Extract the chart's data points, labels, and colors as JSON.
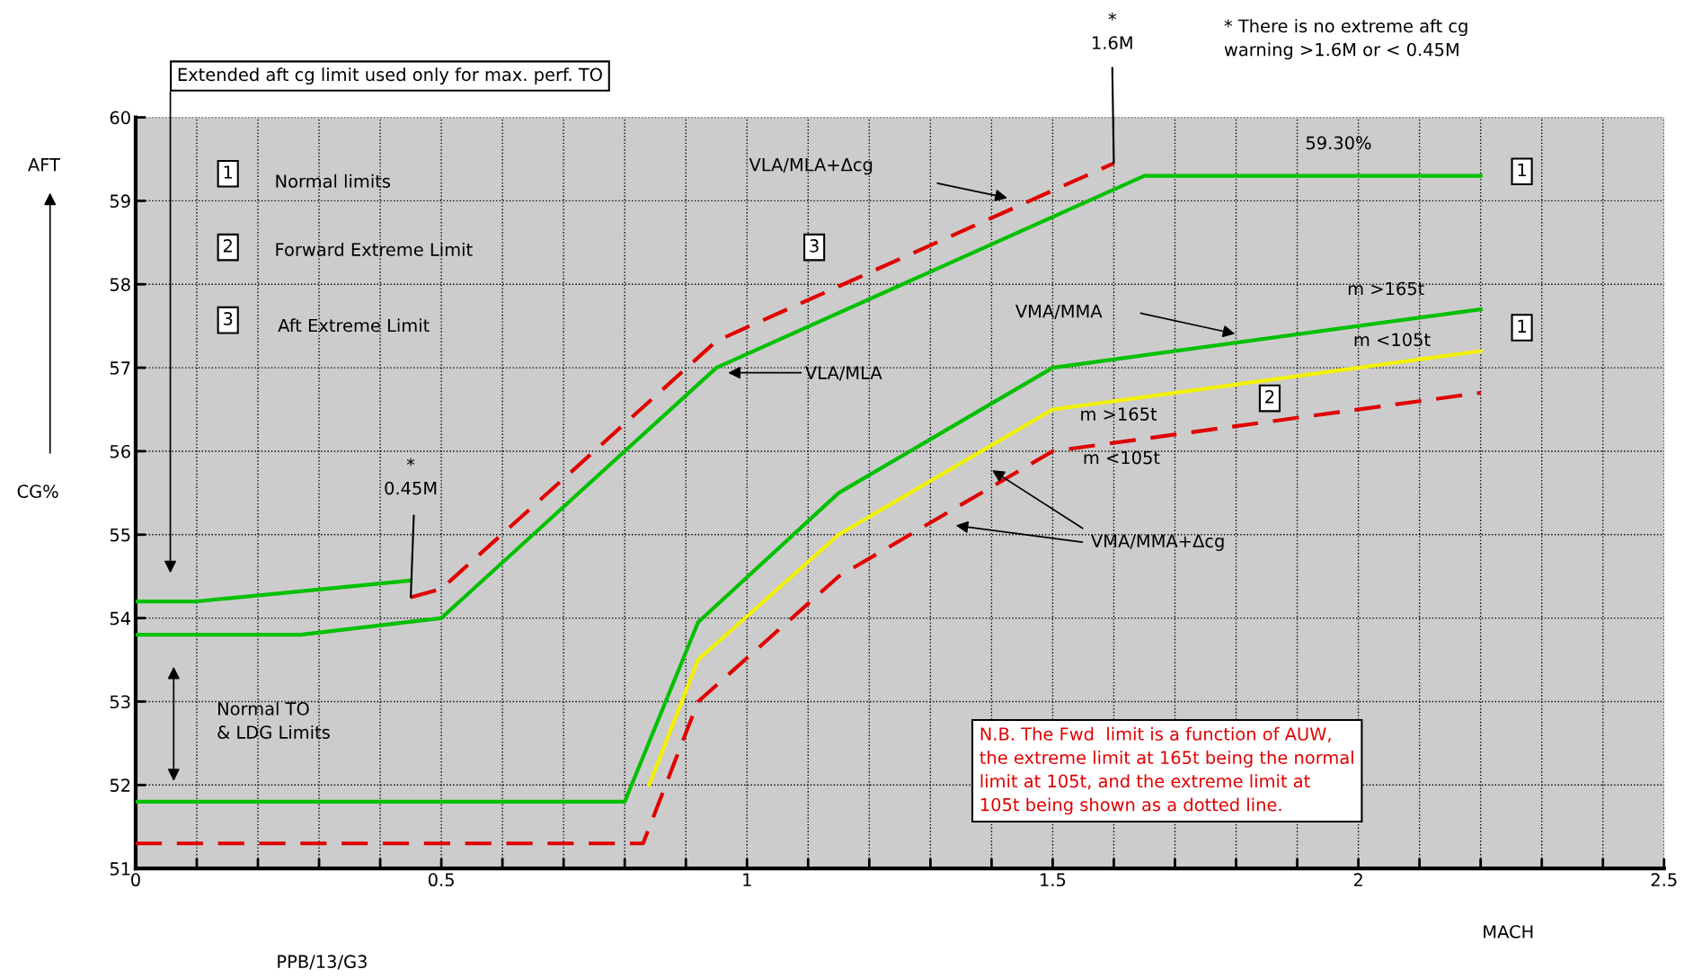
{
  "chart_data": {
    "type": "line",
    "xlabel": "MACH",
    "ylabel": "CG%",
    "xlim": [
      0,
      2.5
    ],
    "ylim": [
      51,
      60
    ],
    "xticks": [
      0,
      {
        "value": 0.1,
        "label": null
      },
      {
        "value": 0.2,
        "label": null
      },
      {
        "value": 0.3,
        "label": null
      },
      {
        "value": 0.4,
        "label": null
      },
      0.5,
      {
        "value": 0.6,
        "label": null
      },
      {
        "value": 0.7,
        "label": null
      },
      {
        "value": 0.8,
        "label": null
      },
      {
        "value": 0.9,
        "label": null
      },
      1,
      {
        "value": 1.1,
        "label": null
      },
      {
        "value": 1.2,
        "label": null
      },
      {
        "value": 1.3,
        "label": null
      },
      {
        "value": 1.4,
        "label": null
      },
      1.5,
      {
        "value": 1.6,
        "label": null
      },
      {
        "value": 1.7,
        "label": null
      },
      {
        "value": 1.8,
        "label": null
      },
      {
        "value": 1.9,
        "label": null
      },
      2,
      {
        "value": 2.1,
        "label": null
      },
      {
        "value": 2.2,
        "label": null
      },
      {
        "value": 2.3,
        "label": null
      },
      {
        "value": 2.4,
        "label": null
      },
      2.5
    ],
    "yticks": [
      51,
      52,
      53,
      54,
      55,
      56,
      57,
      58,
      59,
      60
    ],
    "grid": true,
    "series": [
      {
        "color": "#00c000",
        "line_style": "solid",
        "x": [
          0,
          0.1,
          0.45
        ],
        "values": [
          54.2,
          54.2,
          54.45
        ]
      },
      {
        "color": "#e00000",
        "line_style": "dashed",
        "x": [
          0.45,
          0.5,
          0.95,
          1.6
        ],
        "values": [
          54.25,
          54.35,
          57.32,
          59.45
        ]
      },
      {
        "color": "#00c000",
        "line_style": "solid",
        "x": [
          0,
          0.27,
          0.5,
          0.95,
          1.65,
          2.2
        ],
        "values": [
          53.8,
          53.8,
          54.0,
          57.0,
          59.3,
          59.3
        ]
      },
      {
        "color": "#00c000",
        "line_style": "solid",
        "x": [
          0,
          0.8,
          0.92,
          1.15,
          1.5,
          2.2
        ],
        "values": [
          51.8,
          51.8,
          53.95,
          55.5,
          57.0,
          57.7
        ]
      },
      {
        "color": "#f2f200",
        "line_style": "solid",
        "x": [
          0.84,
          0.92,
          1.15,
          1.5,
          2.2
        ],
        "values": [
          52.0,
          53.5,
          55.0,
          56.5,
          57.2
        ]
      },
      {
        "color": "#e00000",
        "line_style": "dashed",
        "x": [
          0,
          0.83,
          0.92,
          1.15,
          1.5,
          2.2
        ],
        "values": [
          51.3,
          51.3,
          53.0,
          54.5,
          56.0,
          56.7
        ]
      }
    ],
    "annotations": [
      "Extended aft cg limit used only for max. perf. TO",
      "* There is no extreme aft cg\nwarning >1.6M or < 0.45M",
      {
        "text": "*\n1.6M",
        "x": 1.6,
        "y": 59.45
      },
      {
        "text": "*\n0.45M",
        "x": 0.45,
        "y": 54.25
      },
      "1",
      "Normal limits",
      "2",
      "Forward Extreme Limit",
      "3",
      "Aft Extreme Limit",
      "VLA/MLA+Δcg",
      "3",
      "VLA/MLA",
      "59.30%",
      "1",
      "VMA/MMA",
      "m >165t",
      "1",
      "m <105t",
      "2",
      "m >165t",
      "m <105t",
      "VMA/MMA+Δcg",
      "Normal TO\n& LDG Limits",
      "N.B. The Fwd  limit is a function of AUW,\nthe extreme limit at 165t being the normal\nlimit at 105t, and the extreme limit at\n105t being shown as a dotted line.",
      "PPB/13/G3",
      "AFT"
    ]
  }
}
